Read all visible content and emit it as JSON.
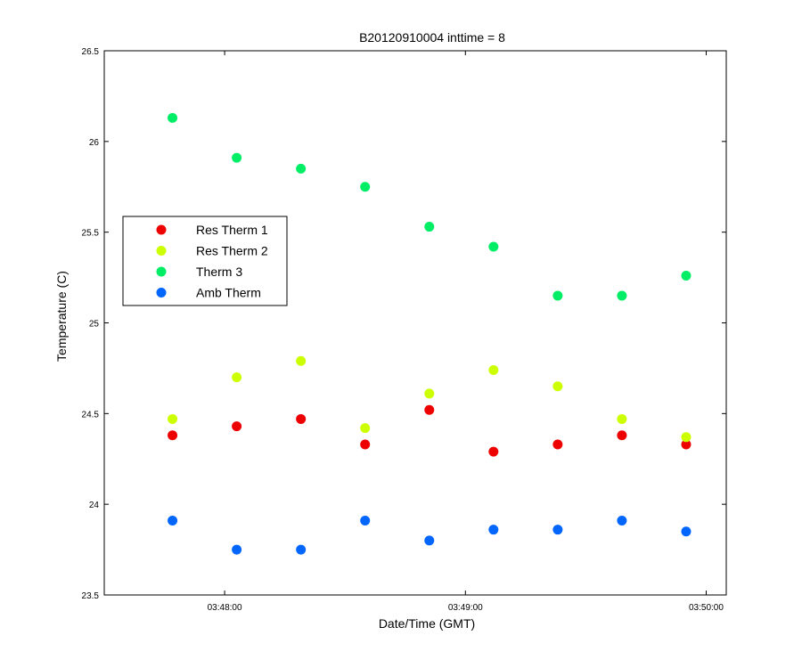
{
  "chart_data": {
    "type": "scatter",
    "title": "B20120910004 inttime = 8",
    "xlabel": "Date/Time (GMT)",
    "ylabel": "Temperature (C)",
    "xlim": [
      "03:47:30",
      "03:50:05"
    ],
    "ylim": [
      23.5,
      26.5
    ],
    "x_ticks": [
      "03:48:00",
      "03:49:00",
      "03:50:00"
    ],
    "y_ticks": [
      "23.5",
      "24",
      "24.5",
      "25",
      "25.5",
      "26",
      "26.5"
    ],
    "x": [
      "03:47:47",
      "03:48:03",
      "03:48:19",
      "03:48:35",
      "03:48:51",
      "03:49:07",
      "03:49:23",
      "03:49:39",
      "03:49:55"
    ],
    "grid": false,
    "legend_position": "upper-left",
    "series": [
      {
        "name": "Res Therm 1",
        "color": "#ee0000",
        "values": [
          24.38,
          24.43,
          24.47,
          24.33,
          24.52,
          24.29,
          24.33,
          24.38,
          24.33
        ]
      },
      {
        "name": "Res Therm 2",
        "color": "#ccff00",
        "values": [
          24.47,
          24.7,
          24.79,
          24.42,
          24.61,
          24.74,
          24.65,
          24.47,
          24.37
        ]
      },
      {
        "name": "Therm 3",
        "color": "#00ee66",
        "values": [
          26.13,
          25.91,
          25.85,
          25.75,
          25.53,
          25.42,
          25.15,
          25.15,
          25.26
        ]
      },
      {
        "name": "Amb Therm",
        "color": "#0066ff",
        "values": [
          23.91,
          23.75,
          23.75,
          23.91,
          23.8,
          23.86,
          23.86,
          23.91,
          23.85
        ]
      }
    ]
  }
}
